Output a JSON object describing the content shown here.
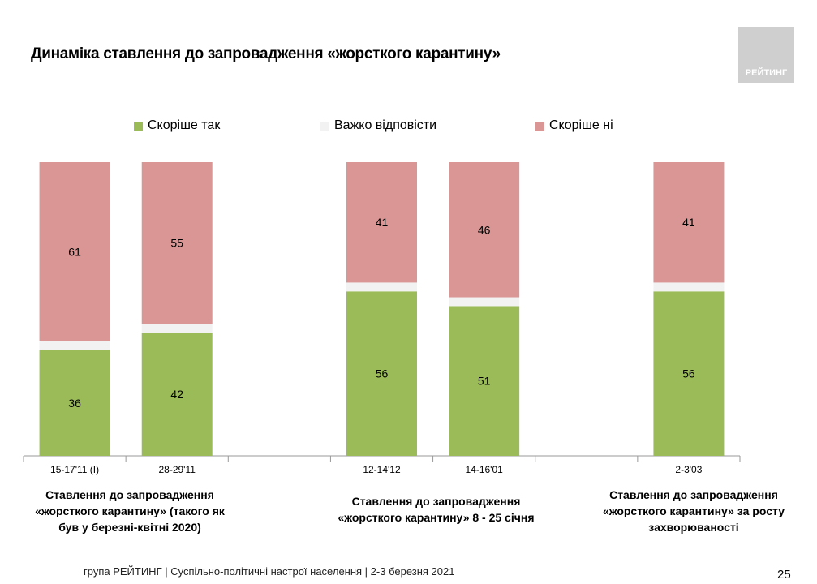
{
  "title": "Динаміка ставлення до запровадження «жорсткого карантину»",
  "logo_text": "РЕЙТИНГ",
  "footer": "група РЕЙТИНГ | Суспільно-політичні настрої населення  | 2-3 березня 2021",
  "page_number": "25",
  "group_labels": [
    "Ставлення до запровадження «жорсткого карантину» (такого як був у березні-квітні 2020)",
    "Ставлення до запровадження «жорсткого карантину» 8 - 25 січня",
    "Ставлення до запровадження «жорсткого карантину» за росту захворюваності"
  ],
  "chart_data": {
    "type": "bar",
    "stacked": true,
    "categories": [
      "15-17'11 (I)",
      "28-29'11",
      "",
      "12-14'12",
      "14-16'01",
      "",
      "2-3'03"
    ],
    "series": [
      {
        "name": "Скоріше так",
        "color": "#9bbb59",
        "values": [
          36,
          42,
          null,
          56,
          51,
          null,
          56
        ]
      },
      {
        "name": "Важко відповісти",
        "color": "#f2f2f2",
        "values": [
          3,
          3,
          null,
          3,
          3,
          null,
          3
        ]
      },
      {
        "name": "Скоріше ні",
        "color": "#d99694",
        "values": [
          61,
          55,
          null,
          41,
          46,
          null,
          41
        ]
      }
    ],
    "ylim": [
      0,
      100
    ],
    "legend": "top",
    "grid": false
  }
}
